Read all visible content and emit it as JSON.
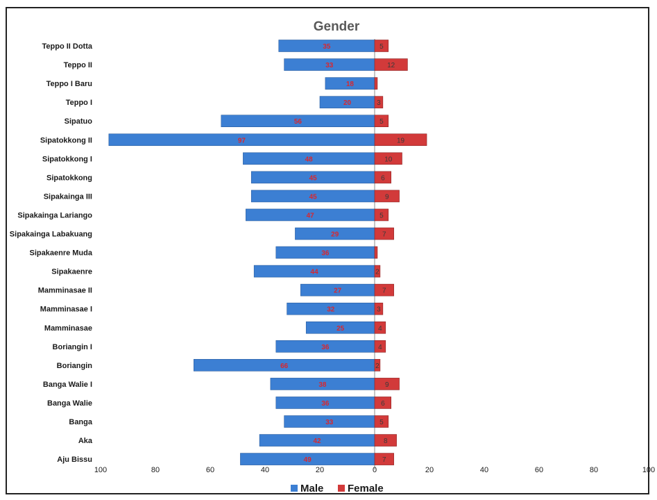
{
  "chart_data": {
    "type": "bar",
    "orientation": "horizontal",
    "layout": "population-pyramid",
    "title": "Gender",
    "categories": [
      "Teppo II Dotta",
      "Teppo II",
      "Teppo I Baru",
      "Teppo I",
      "Sipatuo",
      "Sipatokkong II",
      "Sipatokkong I",
      "Sipatokkong",
      "Sipakainga III",
      "Sipakainga Lariango",
      "Sipakainga Labakuang",
      "Sipakaenre Muda",
      "Sipakaenre",
      "Mamminasae II",
      "Mamminasae I",
      "Mamminasae",
      "Boriangin I",
      "Boriangin",
      "Banga Walie I",
      "Banga Walie",
      "Banga",
      "Aka",
      "Aju Bissu"
    ],
    "series": [
      {
        "name": "Male",
        "color": "#3c7fd3",
        "values": [
          35,
          33,
          18,
          20,
          56,
          97,
          48,
          45,
          45,
          47,
          29,
          36,
          44,
          27,
          32,
          25,
          36,
          66,
          38,
          36,
          33,
          42,
          49
        ]
      },
      {
        "name": "Female",
        "color": "#d23a3a",
        "values": [
          5,
          12,
          1,
          3,
          5,
          19,
          10,
          6,
          9,
          5,
          7,
          1,
          2,
          7,
          3,
          4,
          4,
          2,
          9,
          6,
          5,
          8,
          7
        ]
      }
    ],
    "value_labels_male": [
      "35",
      "33",
      "18",
      "20",
      "56",
      "97",
      "48",
      "45",
      "45",
      "47",
      "29",
      "36",
      "44",
      "27",
      "32",
      "25",
      "36",
      "66",
      "38",
      "36",
      "33",
      "42",
      "49"
    ],
    "value_labels_female": [
      "5",
      "12",
      "",
      "3",
      "5",
      "19",
      "10",
      "6",
      "9",
      "5",
      "7",
      "",
      "2",
      "7",
      "3",
      "4",
      "4",
      "2",
      "9",
      "6",
      "5",
      "8",
      "7"
    ],
    "xlim": [
      -100,
      100
    ],
    "x_ticks": [
      -100,
      -80,
      -60,
      -40,
      -20,
      0,
      20,
      40,
      60,
      80,
      100
    ],
    "x_tick_labels": [
      "100",
      "80",
      "60",
      "40",
      "20",
      "0",
      "20",
      "40",
      "60",
      "80",
      "100"
    ],
    "grid": false,
    "legend_position": "bottom"
  }
}
